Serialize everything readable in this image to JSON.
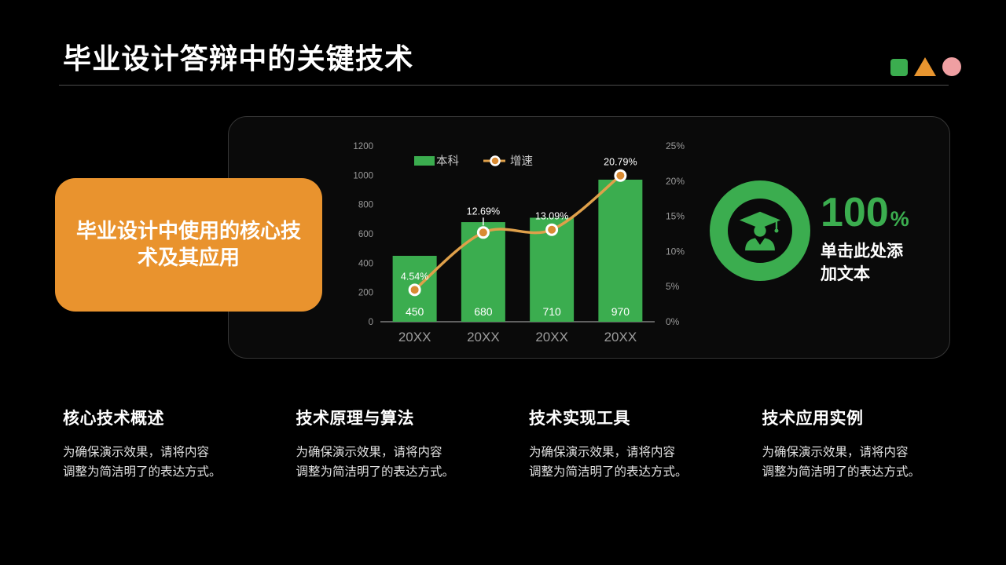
{
  "header": {
    "title": "毕业设计答辩中的关键技术",
    "shape_colors": {
      "square": "#3BAD4F",
      "triangle": "#E8952F",
      "circle": "#EF9FA2"
    }
  },
  "callout": {
    "text": "毕业设计中使用的核心技\n术及其应用",
    "bg": "#E9932E"
  },
  "stat": {
    "value": "100",
    "unit": "%",
    "caption": "单击此处添\n加文本",
    "color": "#3BAD4F",
    "icon": "graduate-icon"
  },
  "chart_data": {
    "type": "bar+line",
    "categories": [
      "20XX",
      "20XX",
      "20XX",
      "20XX"
    ],
    "series": [
      {
        "name": "本科",
        "type": "bar",
        "axis": "left",
        "values": [
          450,
          680,
          710,
          970
        ],
        "color": "#3BAD4F",
        "value_labels": [
          "450",
          "680",
          "710",
          "970"
        ]
      },
      {
        "name": "增速",
        "type": "line",
        "axis": "right",
        "values": [
          4.54,
          12.69,
          13.09,
          20.79
        ],
        "unit": "%",
        "color": "#DFA04A",
        "dot_color": "#D98B33",
        "point_labels": [
          "4.54%",
          "12.69%",
          "13.09%",
          "20.79%"
        ]
      }
    ],
    "left_axis": {
      "min": 0,
      "max": 1200,
      "step": 200,
      "ticks": [
        "0",
        "200",
        "400",
        "600",
        "800",
        "1000",
        "1200"
      ]
    },
    "right_axis": {
      "min": 0,
      "max": 25,
      "step": 5,
      "ticks": [
        "0%",
        "5%",
        "10%",
        "15%",
        "20%",
        "25%"
      ]
    },
    "legend_position": "top",
    "grid": false,
    "text_colors": {
      "ticks": "#9a9a9a",
      "x_labels": "#9c9c9c",
      "data_labels": "#ffffff",
      "legend": "#c8c8c8"
    }
  },
  "columns": [
    {
      "title": "核心技术概述",
      "body": "为确保演示效果，请将内容\n调整为简洁明了的表达方式。"
    },
    {
      "title": "技术原理与算法",
      "body": "为确保演示效果，请将内容\n调整为简洁明了的表达方式。"
    },
    {
      "title": "技术实现工具",
      "body": "为确保演示效果，请将内容\n调整为简洁明了的表达方式。"
    },
    {
      "title": "技术应用实例",
      "body": "为确保演示效果，请将内容\n调整为简洁明了的表达方式。"
    }
  ]
}
